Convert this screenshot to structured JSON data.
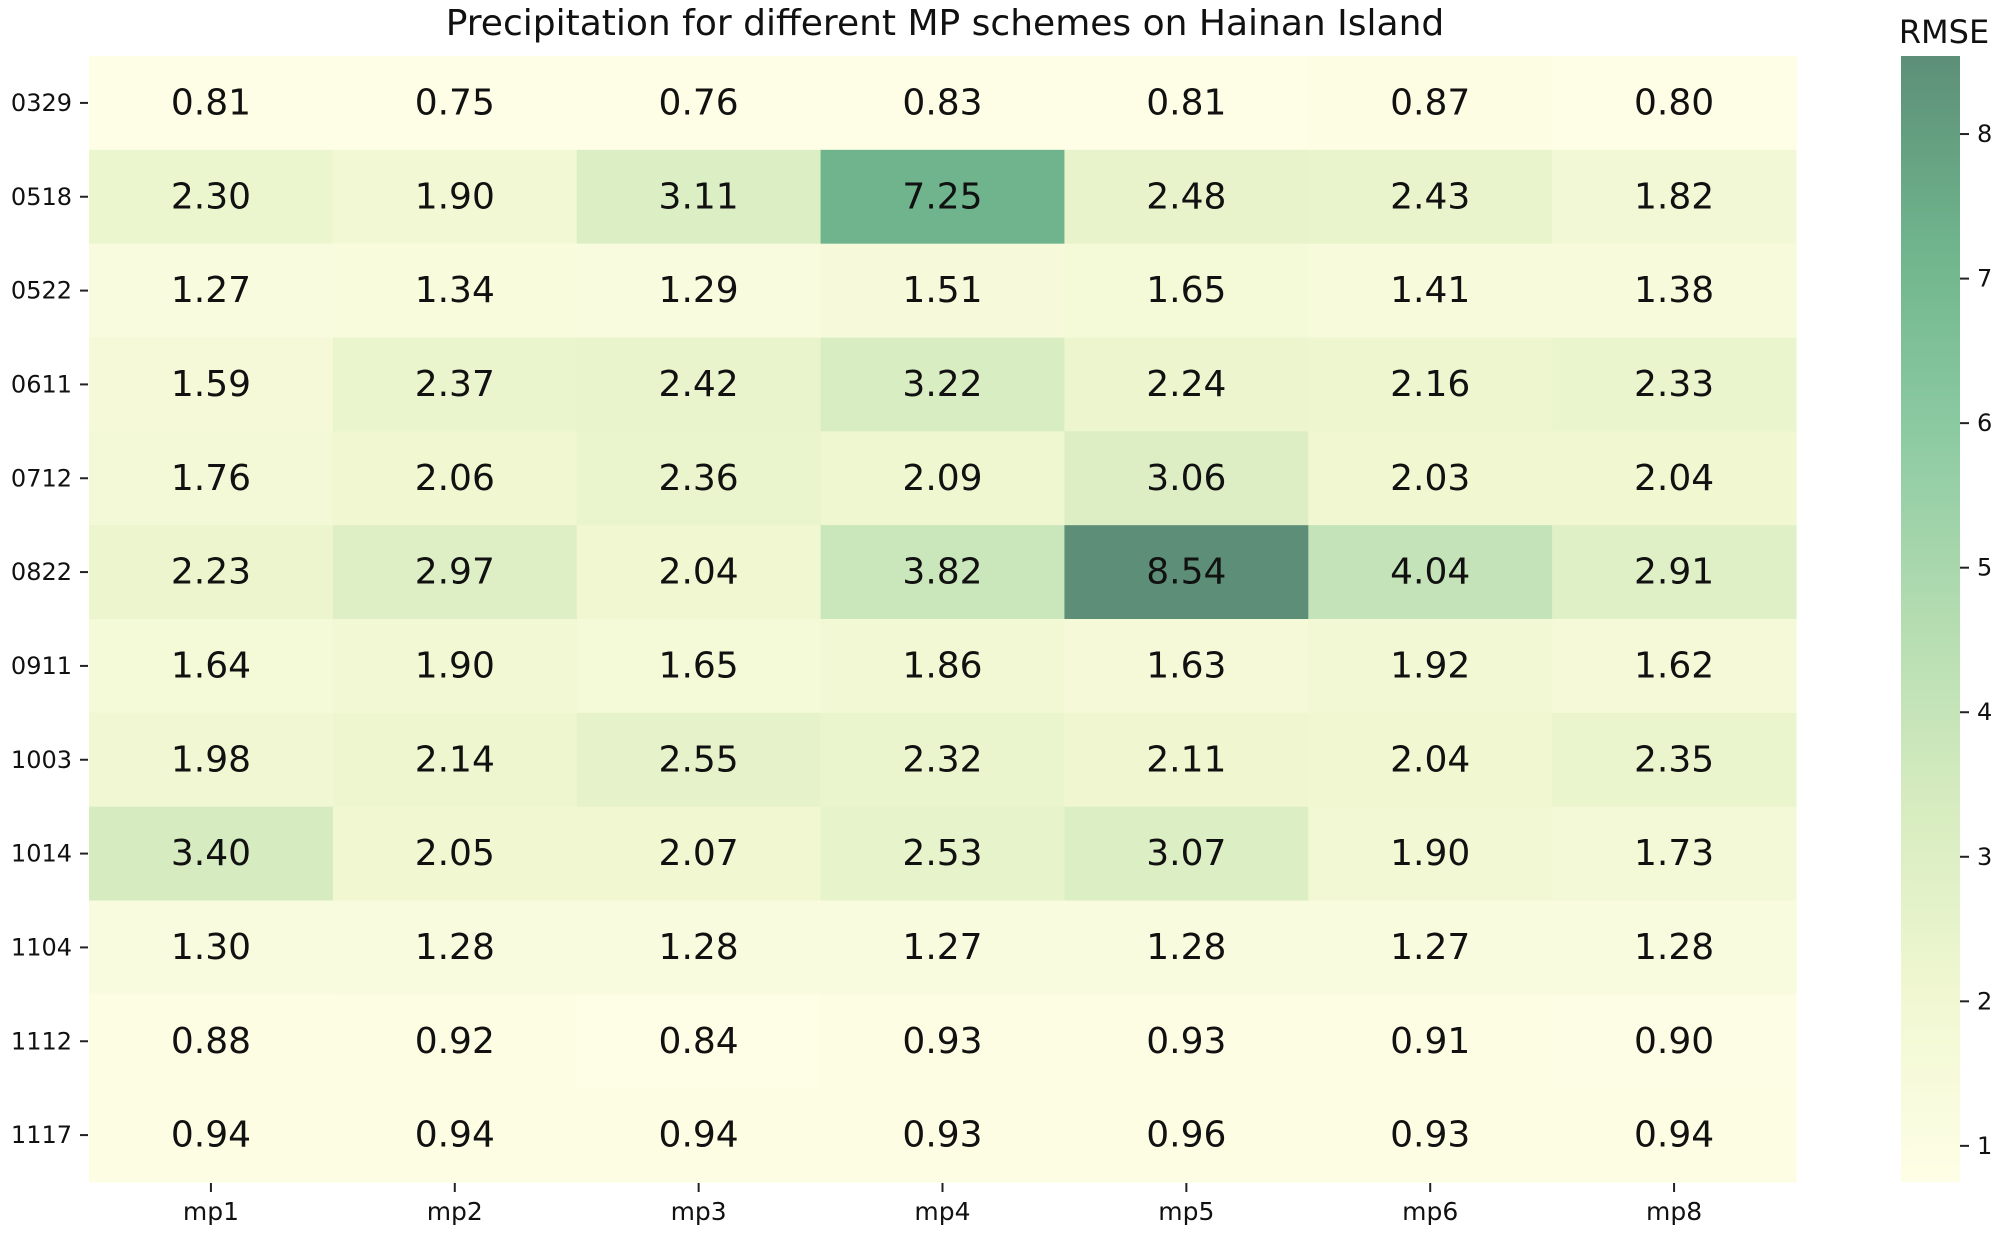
{
  "chart_data": {
    "type": "heatmap",
    "title": "Precipitation for different MP schemes on Hainan Island",
    "xlabel": "",
    "ylabel": "",
    "x_categories": [
      "mp1",
      "mp2",
      "mp3",
      "mp4",
      "mp5",
      "mp6",
      "mp8"
    ],
    "y_categories": [
      "0329",
      "0518",
      "0522",
      "0611",
      "0712",
      "0822",
      "0911",
      "1003",
      "1014",
      "1104",
      "1112",
      "1117"
    ],
    "values": [
      [
        0.81,
        0.75,
        0.76,
        0.83,
        0.81,
        0.87,
        0.8
      ],
      [
        2.3,
        1.9,
        3.11,
        7.25,
        2.48,
        2.43,
        1.82
      ],
      [
        1.27,
        1.34,
        1.29,
        1.51,
        1.65,
        1.41,
        1.38
      ],
      [
        1.59,
        2.37,
        2.42,
        3.22,
        2.24,
        2.16,
        2.33
      ],
      [
        1.76,
        2.06,
        2.36,
        2.09,
        3.06,
        2.03,
        2.04
      ],
      [
        2.23,
        2.97,
        2.04,
        3.82,
        8.54,
        4.04,
        2.91
      ],
      [
        1.64,
        1.9,
        1.65,
        1.86,
        1.63,
        1.92,
        1.62
      ],
      [
        1.98,
        2.14,
        2.55,
        2.32,
        2.11,
        2.04,
        2.35
      ],
      [
        3.4,
        2.05,
        2.07,
        2.53,
        3.07,
        1.9,
        1.73
      ],
      [
        1.3,
        1.28,
        1.28,
        1.27,
        1.28,
        1.27,
        1.28
      ],
      [
        0.88,
        0.92,
        0.84,
        0.93,
        0.93,
        0.91,
        0.9
      ],
      [
        0.94,
        0.94,
        0.94,
        0.93,
        0.96,
        0.93,
        0.94
      ]
    ],
    "value_format": "0.00",
    "colorbar": {
      "label": "RMSE",
      "range": [
        0.75,
        8.54
      ],
      "ticks": [
        1,
        2,
        3,
        4,
        5,
        6,
        7,
        8
      ],
      "colors": [
        "#fefee6",
        "#f0f7d1",
        "#d7ecc0",
        "#b4dcb1",
        "#8ccaa2",
        "#6fb48c",
        "#5d8f78"
      ]
    }
  }
}
